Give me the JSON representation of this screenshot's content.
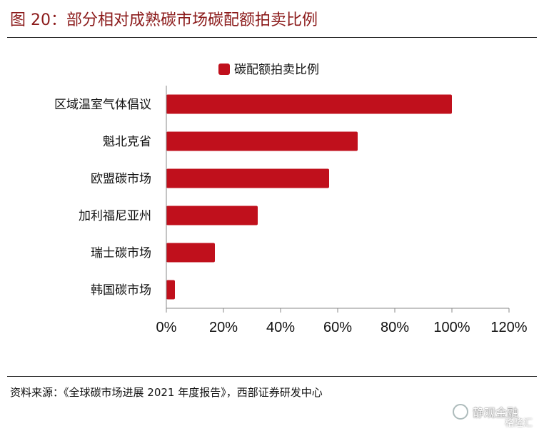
{
  "header": {
    "title": "图 20：部分相对成熟碳市场碳配额拍卖比例"
  },
  "chart_data": {
    "type": "bar",
    "orientation": "horizontal",
    "categories": [
      "区域温室气体倡议",
      "魁北克省",
      "欧盟碳市场",
      "加利福尼亚州",
      "瑞士碳市场",
      "韩国碳市场"
    ],
    "series": [
      {
        "name": "碳配额拍卖比例",
        "values": [
          100,
          67,
          57,
          32,
          17,
          3
        ],
        "color": "#c0101c"
      }
    ],
    "xlim": [
      0,
      120
    ],
    "xticks": [
      "0%",
      "20%",
      "40%",
      "60%",
      "80%",
      "100%",
      "120%"
    ],
    "xtick_values": [
      0,
      20,
      40,
      60,
      80,
      100,
      120
    ],
    "legend_position": "top-center",
    "grid": false
  },
  "footer": {
    "source": "资料来源：《全球碳市场进展 2021 年度报告》，西部证券研发中心"
  },
  "watermark": {
    "text": "静观金融",
    "sub": "格隆汇",
    "icon": "wechat-icon"
  }
}
